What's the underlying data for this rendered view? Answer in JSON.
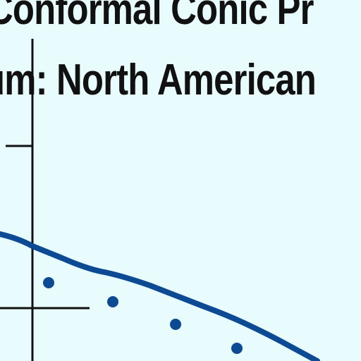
{
  "map": {
    "title_projection": "Conformal Conic Pr",
    "title_datum": "um: North American"
  },
  "colors": {
    "background": "#e8fbfd",
    "text": "#111111",
    "boundary": "#0d4a94",
    "city_dots": "#0d4a94",
    "grid_lines": "#111111"
  },
  "icons": {
    "points": "city-dot-icon",
    "boundary": "boundary-line"
  }
}
